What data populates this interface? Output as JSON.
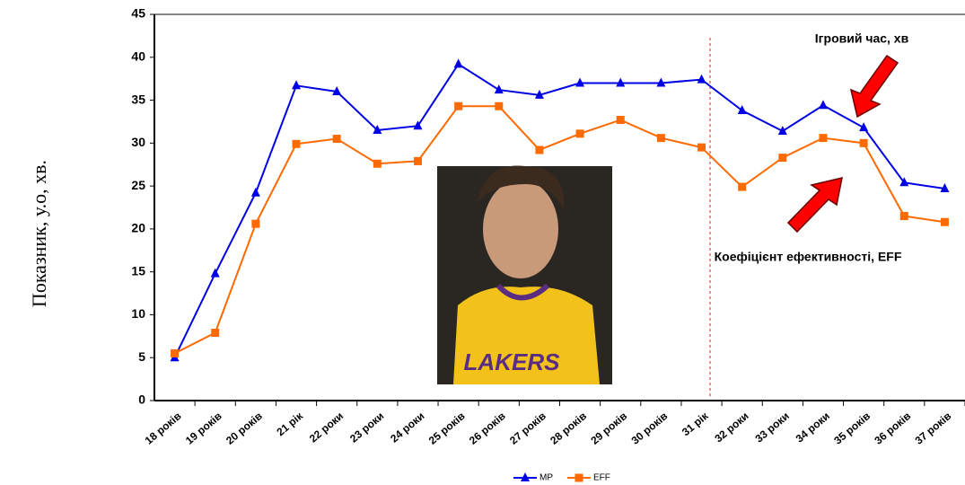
{
  "chart_data": {
    "type": "line",
    "y_label": "Показник, у.о, хв.",
    "annotations": [
      "Ігровий час, хв",
      "Коефіцієнт ефективності, EFF"
    ],
    "categories": [
      "18 років",
      "19 років",
      "20 років",
      "21 рік",
      "22 роки",
      "23 роки",
      "24 роки",
      "25 років",
      "26 років",
      "27 років",
      "28 років",
      "29 років",
      "30 років",
      "31 рік",
      "32 роки",
      "33 роки",
      "34 роки",
      "35 років",
      "36 років",
      "37 років"
    ],
    "series": [
      {
        "name": "MP",
        "color": "#0000e6",
        "marker": "triangle",
        "values": [
          5,
          14.8,
          24.2,
          36.7,
          36,
          31.5,
          32,
          39.2,
          36.2,
          35.6,
          37,
          37,
          37,
          37.4,
          33.8,
          31.4,
          34.4,
          31.8,
          25.4,
          24.7
        ]
      },
      {
        "name": "EFF",
        "color": "#ff6a00",
        "marker": "square",
        "values": [
          5.5,
          7.9,
          20.6,
          29.9,
          30.5,
          27.6,
          27.9,
          34.3,
          34.3,
          29.2,
          31.1,
          32.7,
          30.6,
          29.5,
          24.9,
          28.3,
          30.6,
          30,
          21.5,
          20.8
        ]
      }
    ],
    "ylim": [
      0,
      45
    ],
    "yticks": [
      0,
      5,
      10,
      15,
      20,
      25,
      30,
      35,
      40,
      45
    ],
    "legend": "bottom"
  }
}
